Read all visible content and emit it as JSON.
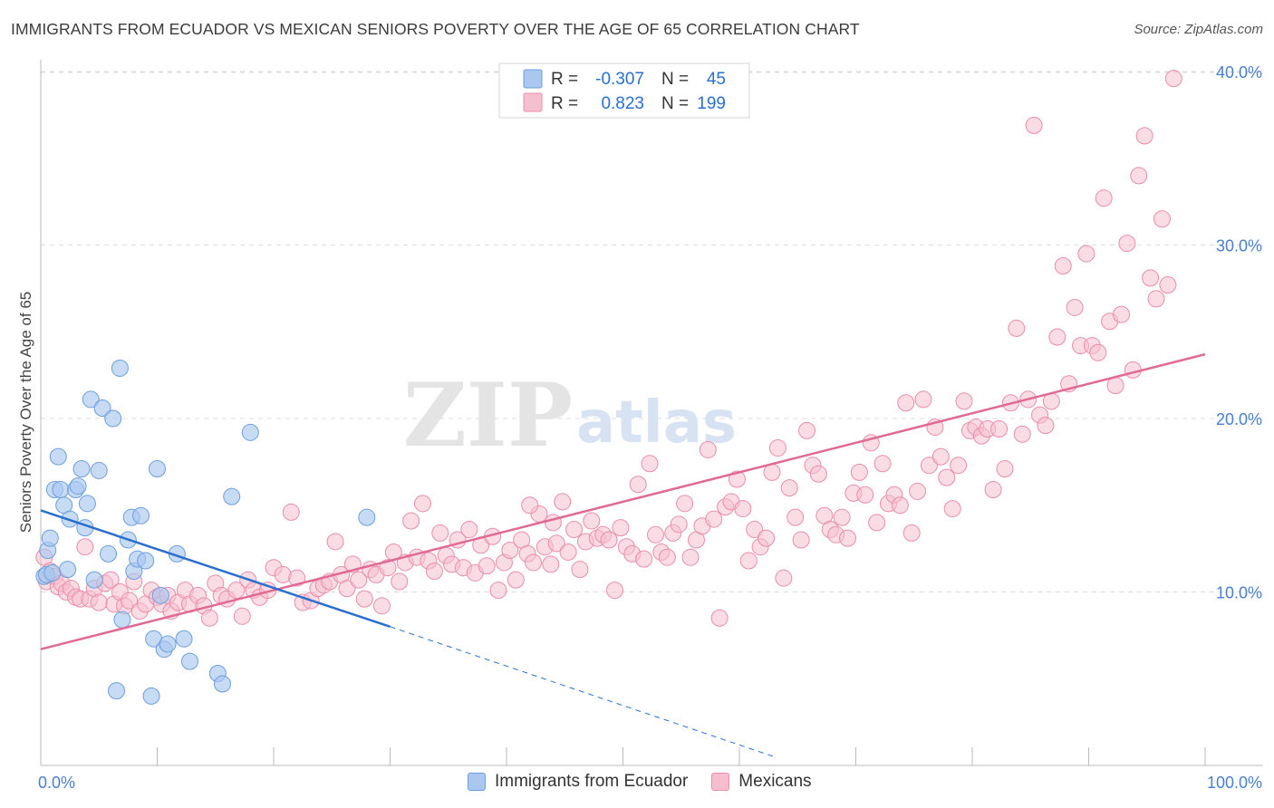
{
  "header": {
    "title": "IMMIGRANTS FROM ECUADOR VS MEXICAN SENIORS POVERTY OVER THE AGE OF 65 CORRELATION CHART",
    "source": "Source: ZipAtlas.com"
  },
  "watermark": {
    "zip": "ZIP",
    "atlas": "atlas"
  },
  "colors": {
    "blue_fill": "#a9c7ef",
    "blue_stroke": "#6c9fdc",
    "blue_line": "#2a6fcd",
    "pink_fill": "#f6bfd0",
    "pink_stroke": "#e98dab",
    "pink_line": "#e06a94",
    "tick_label": "#4a7fd0",
    "grid": "#dcdcdc"
  },
  "stats_legend": [
    {
      "series": "Immigrants from Ecuador",
      "r_label": "R =",
      "r_value": "-0.307",
      "n_label": "N =",
      "n_value": "45"
    },
    {
      "series": "Mexicans",
      "r_label": "R =",
      "r_value": "0.823",
      "n_label": "N =",
      "n_value": "199"
    }
  ],
  "chart_data": {
    "type": "scatter",
    "title": "IMMIGRANTS FROM ECUADOR VS MEXICAN SENIORS POVERTY OVER THE AGE OF 65 CORRELATION CHART",
    "xlabel": "",
    "ylabel": "Seniors Poverty Over the Age of 65",
    "xlim": [
      0,
      100
    ],
    "ylim": [
      0,
      40
    ],
    "x_tick_labels": [
      "0.0%",
      "100.0%"
    ],
    "y_ticks": [
      10,
      20,
      30,
      40
    ],
    "y_tick_labels": [
      "10.0%",
      "20.0%",
      "30.0%",
      "40.0%"
    ],
    "grid": true,
    "legend_position": "bottom",
    "series": [
      {
        "name": "Immigrants from Ecuador",
        "color": "#a9c7ef",
        "trend": {
          "x": [
            0,
            30
          ],
          "y": [
            14.7,
            8.0
          ],
          "extended_to": [
            63,
            0.5
          ],
          "extended_style": "dashed"
        },
        "points": [
          [
            0.3,
            10.9
          ],
          [
            0.5,
            11.0
          ],
          [
            0.6,
            12.4
          ],
          [
            0.8,
            13.1
          ],
          [
            1.0,
            11.1
          ],
          [
            1.2,
            15.9
          ],
          [
            1.5,
            17.8
          ],
          [
            1.7,
            15.9
          ],
          [
            2.0,
            15.0
          ],
          [
            2.3,
            11.3
          ],
          [
            2.5,
            14.2
          ],
          [
            3.0,
            15.9
          ],
          [
            3.2,
            16.1
          ],
          [
            3.5,
            17.1
          ],
          [
            3.8,
            13.7
          ],
          [
            4.0,
            15.1
          ],
          [
            4.3,
            21.1
          ],
          [
            4.6,
            10.7
          ],
          [
            5.0,
            17.0
          ],
          [
            5.3,
            20.6
          ],
          [
            5.8,
            12.2
          ],
          [
            6.2,
            20.0
          ],
          [
            6.5,
            4.3
          ],
          [
            6.8,
            22.9
          ],
          [
            7.0,
            8.4
          ],
          [
            7.5,
            13.0
          ],
          [
            7.8,
            14.3
          ],
          [
            8.0,
            11.2
          ],
          [
            8.3,
            11.9
          ],
          [
            8.6,
            14.4
          ],
          [
            9.0,
            11.8
          ],
          [
            9.5,
            4.0
          ],
          [
            9.7,
            7.3
          ],
          [
            10.0,
            17.1
          ],
          [
            10.3,
            9.8
          ],
          [
            10.6,
            6.7
          ],
          [
            10.9,
            7.0
          ],
          [
            11.7,
            12.2
          ],
          [
            12.3,
            7.3
          ],
          [
            12.8,
            6.0
          ],
          [
            15.2,
            5.3
          ],
          [
            15.6,
            4.7
          ],
          [
            16.4,
            15.5
          ],
          [
            18.0,
            19.2
          ],
          [
            28.0,
            14.3
          ]
        ]
      },
      {
        "name": "Mexicans",
        "color": "#f6bfd0",
        "trend": {
          "x": [
            0,
            100
          ],
          "y": [
            6.7,
            23.7
          ]
        },
        "points": [
          [
            0.3,
            12.0
          ],
          [
            0.5,
            10.6
          ],
          [
            0.8,
            11.2
          ],
          [
            1.2,
            10.9
          ],
          [
            1.5,
            10.3
          ],
          [
            1.8,
            10.5
          ],
          [
            2.2,
            10.0
          ],
          [
            2.6,
            10.2
          ],
          [
            3.0,
            9.7
          ],
          [
            3.4,
            9.6
          ],
          [
            3.8,
            12.6
          ],
          [
            4.2,
            9.6
          ],
          [
            4.6,
            10.2
          ],
          [
            5.0,
            9.4
          ],
          [
            5.5,
            10.5
          ],
          [
            6.0,
            10.7
          ],
          [
            6.3,
            9.3
          ],
          [
            6.8,
            10.0
          ],
          [
            7.2,
            9.2
          ],
          [
            7.6,
            9.5
          ],
          [
            8.0,
            10.6
          ],
          [
            8.5,
            8.9
          ],
          [
            9.0,
            9.3
          ],
          [
            9.5,
            10.1
          ],
          [
            10.0,
            9.7
          ],
          [
            10.4,
            9.3
          ],
          [
            10.9,
            9.8
          ],
          [
            11.2,
            8.9
          ],
          [
            11.8,
            9.4
          ],
          [
            12.4,
            10.1
          ],
          [
            12.8,
            9.3
          ],
          [
            13.5,
            9.8
          ],
          [
            14.0,
            9.2
          ],
          [
            14.5,
            8.5
          ],
          [
            15.0,
            10.5
          ],
          [
            15.5,
            9.8
          ],
          [
            16.0,
            9.6
          ],
          [
            16.8,
            10.1
          ],
          [
            17.3,
            8.6
          ],
          [
            17.8,
            10.7
          ],
          [
            18.3,
            10.1
          ],
          [
            18.8,
            9.7
          ],
          [
            19.5,
            10.1
          ],
          [
            20.0,
            11.4
          ],
          [
            20.8,
            11.0
          ],
          [
            21.5,
            14.6
          ],
          [
            22.0,
            10.8
          ],
          [
            22.5,
            9.4
          ],
          [
            23.2,
            9.5
          ],
          [
            23.8,
            10.2
          ],
          [
            24.3,
            10.4
          ],
          [
            24.8,
            10.6
          ],
          [
            25.3,
            12.9
          ],
          [
            25.8,
            11.0
          ],
          [
            26.3,
            10.2
          ],
          [
            26.8,
            11.6
          ],
          [
            27.3,
            10.7
          ],
          [
            27.8,
            9.6
          ],
          [
            28.3,
            11.3
          ],
          [
            28.8,
            11.0
          ],
          [
            29.3,
            9.2
          ],
          [
            29.8,
            11.4
          ],
          [
            30.3,
            12.3
          ],
          [
            30.8,
            10.6
          ],
          [
            31.3,
            11.7
          ],
          [
            31.8,
            14.1
          ],
          [
            32.3,
            12.0
          ],
          [
            32.8,
            15.1
          ],
          [
            33.3,
            11.8
          ],
          [
            33.8,
            11.2
          ],
          [
            34.3,
            13.4
          ],
          [
            34.8,
            12.1
          ],
          [
            35.3,
            11.6
          ],
          [
            35.8,
            13.0
          ],
          [
            36.3,
            11.4
          ],
          [
            36.8,
            13.6
          ],
          [
            37.3,
            11.1
          ],
          [
            37.8,
            12.7
          ],
          [
            38.3,
            11.5
          ],
          [
            38.8,
            13.2
          ],
          [
            39.3,
            10.1
          ],
          [
            39.8,
            11.7
          ],
          [
            40.3,
            12.4
          ],
          [
            40.8,
            10.7
          ],
          [
            41.3,
            13.0
          ],
          [
            41.8,
            12.2
          ],
          [
            42.3,
            11.7
          ],
          [
            42.8,
            14.5
          ],
          [
            43.3,
            12.6
          ],
          [
            43.8,
            11.6
          ],
          [
            44.3,
            12.8
          ],
          [
            44.8,
            15.2
          ],
          [
            45.3,
            12.3
          ],
          [
            45.8,
            13.6
          ],
          [
            46.3,
            11.3
          ],
          [
            46.8,
            12.9
          ],
          [
            47.3,
            14.1
          ],
          [
            47.8,
            13.1
          ],
          [
            48.3,
            13.3
          ],
          [
            48.8,
            13.0
          ],
          [
            49.3,
            10.1
          ],
          [
            49.8,
            13.7
          ],
          [
            50.3,
            12.6
          ],
          [
            50.8,
            12.2
          ],
          [
            51.3,
            16.2
          ],
          [
            51.8,
            11.9
          ],
          [
            52.3,
            17.4
          ],
          [
            52.8,
            13.3
          ],
          [
            53.3,
            12.3
          ],
          [
            53.8,
            12.0
          ],
          [
            54.3,
            13.4
          ],
          [
            54.8,
            13.9
          ],
          [
            55.3,
            15.1
          ],
          [
            55.8,
            12.0
          ],
          [
            56.3,
            13.0
          ],
          [
            56.8,
            13.8
          ],
          [
            57.3,
            18.2
          ],
          [
            57.8,
            14.2
          ],
          [
            58.3,
            8.5
          ],
          [
            58.8,
            14.9
          ],
          [
            59.3,
            15.2
          ],
          [
            59.8,
            16.5
          ],
          [
            60.3,
            14.8
          ],
          [
            60.8,
            11.8
          ],
          [
            61.3,
            13.6
          ],
          [
            61.8,
            12.6
          ],
          [
            62.3,
            13.1
          ],
          [
            62.8,
            16.9
          ],
          [
            63.3,
            18.3
          ],
          [
            63.8,
            10.8
          ],
          [
            64.3,
            16.0
          ],
          [
            64.8,
            14.3
          ],
          [
            65.3,
            13.0
          ],
          [
            65.8,
            19.3
          ],
          [
            66.3,
            17.3
          ],
          [
            66.8,
            16.8
          ],
          [
            67.3,
            14.4
          ],
          [
            67.8,
            13.6
          ],
          [
            68.3,
            13.3
          ],
          [
            68.8,
            14.3
          ],
          [
            69.3,
            13.1
          ],
          [
            69.8,
            15.7
          ],
          [
            70.3,
            16.9
          ],
          [
            70.8,
            15.6
          ],
          [
            71.3,
            18.6
          ],
          [
            71.8,
            14.0
          ],
          [
            72.3,
            17.4
          ],
          [
            72.8,
            15.1
          ],
          [
            73.3,
            15.6
          ],
          [
            73.8,
            15.0
          ],
          [
            74.3,
            20.9
          ],
          [
            74.8,
            13.4
          ],
          [
            75.3,
            15.8
          ],
          [
            75.8,
            21.1
          ],
          [
            76.3,
            17.3
          ],
          [
            76.8,
            19.5
          ],
          [
            77.3,
            17.8
          ],
          [
            77.8,
            16.6
          ],
          [
            78.3,
            14.8
          ],
          [
            78.8,
            17.3
          ],
          [
            79.3,
            21.0
          ],
          [
            79.8,
            19.3
          ],
          [
            80.3,
            19.5
          ],
          [
            80.8,
            19.0
          ],
          [
            81.3,
            19.4
          ],
          [
            81.8,
            15.9
          ],
          [
            82.3,
            19.4
          ],
          [
            82.8,
            17.1
          ],
          [
            83.3,
            20.9
          ],
          [
            83.8,
            25.2
          ],
          [
            84.3,
            19.1
          ],
          [
            84.8,
            21.1
          ],
          [
            85.3,
            36.9
          ],
          [
            85.8,
            20.2
          ],
          [
            86.3,
            19.6
          ],
          [
            86.8,
            21.0
          ],
          [
            87.3,
            24.7
          ],
          [
            87.8,
            28.8
          ],
          [
            88.3,
            22.0
          ],
          [
            88.8,
            26.4
          ],
          [
            89.3,
            24.2
          ],
          [
            89.8,
            29.5
          ],
          [
            90.3,
            24.2
          ],
          [
            90.8,
            23.8
          ],
          [
            91.3,
            32.7
          ],
          [
            91.8,
            25.6
          ],
          [
            92.3,
            21.9
          ],
          [
            92.8,
            26.0
          ],
          [
            93.3,
            30.1
          ],
          [
            93.8,
            22.8
          ],
          [
            94.3,
            34.0
          ],
          [
            94.8,
            36.3
          ],
          [
            95.3,
            28.1
          ],
          [
            95.8,
            26.9
          ],
          [
            96.3,
            31.5
          ],
          [
            96.8,
            27.7
          ],
          [
            97.3,
            39.6
          ],
          [
            42.0,
            15.0
          ],
          [
            44.0,
            14.0
          ]
        ]
      }
    ]
  },
  "bottom_legend": [
    {
      "label": "Immigrants from Ecuador",
      "color": "#a9c7ef"
    },
    {
      "label": "Mexicans",
      "color": "#f6bfd0"
    }
  ]
}
